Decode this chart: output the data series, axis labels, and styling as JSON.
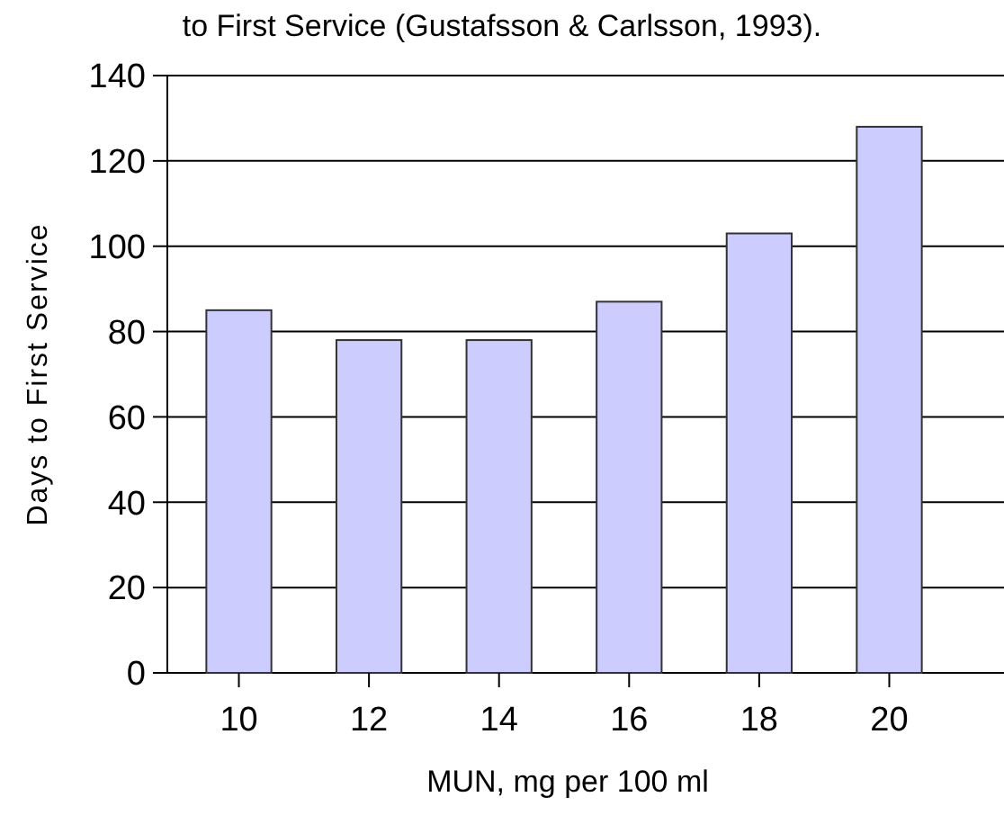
{
  "chart_data": {
    "type": "bar",
    "title": "to First Service (Gustafsson & Carlsson, 1993).",
    "xlabel": "MUN, mg per 100 ml",
    "ylabel": "Days to First Service",
    "categories": [
      "10",
      "12",
      "14",
      "16",
      "18",
      "20"
    ],
    "values": [
      85,
      78,
      78,
      87,
      103,
      128
    ],
    "color": "#ccccff",
    "ylim": [
      0,
      140
    ],
    "yticks": [
      0,
      20,
      40,
      60,
      80,
      100,
      120,
      140
    ],
    "grid": "y"
  }
}
